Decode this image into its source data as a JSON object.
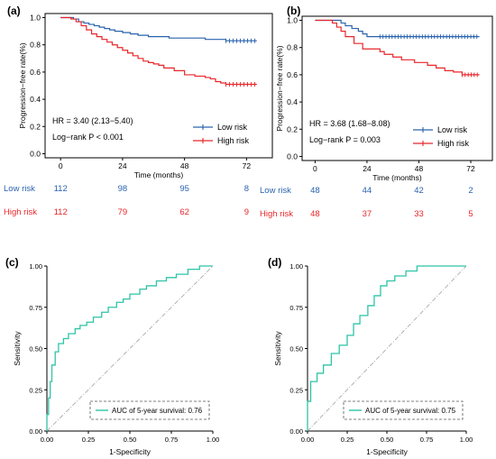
{
  "colors": {
    "low": "#2a63ae",
    "high": "#e8262a",
    "roc": "#2ec4a6",
    "diag": "#aaaaaa",
    "axis": "#000000"
  },
  "chart_data": [
    {
      "type": "line",
      "panel": "(a)",
      "ylabel": "Progression−free rate(%)",
      "xlabel": "Time (months)",
      "xlim": [
        -6,
        82
      ],
      "ylim": [
        -0.03,
        1.03
      ],
      "xticks": [
        "0",
        "24",
        "48",
        "72"
      ],
      "xtick_values": [
        0,
        24,
        48,
        72
      ],
      "yticks": [
        "0.0",
        "0.2",
        "0.4",
        "0.6",
        "0.8",
        "1.0"
      ],
      "ytick_values": [
        0,
        0.2,
        0.4,
        0.6,
        0.8,
        1.0
      ],
      "hr_text": "HR = 3.40 (2.13−5.40)",
      "p_text": "Log−rank P < 0.001",
      "legend_position": "bottom-right",
      "series": [
        {
          "name": "Low risk",
          "color_key": "low",
          "tail_censored": true,
          "x": [
            0,
            5,
            7,
            9,
            11,
            13,
            15,
            17,
            19,
            21,
            24,
            27,
            30,
            34,
            38,
            42,
            48,
            52,
            56,
            60,
            64,
            76
          ],
          "y": [
            1.0,
            0.99,
            0.97,
            0.96,
            0.95,
            0.94,
            0.93,
            0.92,
            0.91,
            0.9,
            0.89,
            0.88,
            0.87,
            0.86,
            0.86,
            0.85,
            0.85,
            0.85,
            0.84,
            0.84,
            0.83,
            0.83
          ]
        },
        {
          "name": "High risk",
          "color_key": "high",
          "tail_censored": true,
          "x": [
            0,
            4,
            6,
            8,
            10,
            12,
            14,
            16,
            18,
            20,
            22,
            24,
            26,
            28,
            30,
            32,
            34,
            36,
            38,
            40,
            44,
            48,
            52,
            56,
            58,
            60,
            62,
            64,
            76
          ],
          "y": [
            1.0,
            0.99,
            0.97,
            0.94,
            0.91,
            0.88,
            0.86,
            0.84,
            0.82,
            0.8,
            0.78,
            0.76,
            0.74,
            0.72,
            0.7,
            0.68,
            0.67,
            0.66,
            0.65,
            0.63,
            0.61,
            0.58,
            0.57,
            0.56,
            0.55,
            0.53,
            0.52,
            0.51,
            0.51
          ]
        }
      ],
      "risk_table": [
        {
          "label": "Low risk",
          "color_key": "low",
          "counts": [
            "112",
            "98",
            "95",
            "8"
          ]
        },
        {
          "label": "High risk",
          "color_key": "high",
          "counts": [
            "112",
            "79",
            "62",
            "9"
          ]
        }
      ]
    },
    {
      "type": "line",
      "panel": "(b)",
      "ylabel": "Progression−free rate(%)",
      "xlabel": "Time (months)",
      "xlim": [
        -6,
        82
      ],
      "ylim": [
        -0.03,
        1.03
      ],
      "xticks": [
        "0",
        "24",
        "48",
        "72"
      ],
      "xtick_values": [
        0,
        24,
        48,
        72
      ],
      "yticks": [
        "0.0",
        "0.2",
        "0.4",
        "0.6",
        "0.8",
        "1.0"
      ],
      "ytick_values": [
        0,
        0.2,
        0.4,
        0.6,
        0.8,
        1.0
      ],
      "hr_text": "HR = 3.68 (1.68−8.08)",
      "p_text": "Log−rank P = 0.003",
      "legend_position": "bottom-right",
      "series": [
        {
          "name": "Low risk",
          "color_key": "low",
          "tail_censored": true,
          "x": [
            0,
            12,
            14,
            17,
            20,
            22,
            24,
            30,
            76
          ],
          "y": [
            1.0,
            0.98,
            0.96,
            0.94,
            0.92,
            0.9,
            0.88,
            0.88,
            0.88
          ]
        },
        {
          "name": "High risk",
          "color_key": "high",
          "tail_censored": true,
          "x": [
            0,
            8,
            10,
            12,
            14,
            18,
            22,
            30,
            32,
            36,
            40,
            46,
            52,
            56,
            60,
            64,
            68,
            76
          ],
          "y": [
            1.0,
            0.98,
            0.95,
            0.92,
            0.88,
            0.83,
            0.79,
            0.77,
            0.75,
            0.73,
            0.71,
            0.69,
            0.67,
            0.65,
            0.63,
            0.62,
            0.6,
            0.6
          ]
        }
      ],
      "risk_table": [
        {
          "label": "Low risk",
          "color_key": "low",
          "counts": [
            "48",
            "44",
            "42",
            "2"
          ]
        },
        {
          "label": "High risk",
          "color_key": "high",
          "counts": [
            "48",
            "37",
            "33",
            "5"
          ]
        }
      ]
    },
    {
      "type": "line",
      "panel": "(c)",
      "ylabel": "Sensitivity",
      "xlabel": "1-Specificity",
      "xlim": [
        0,
        1
      ],
      "ylim": [
        0,
        1
      ],
      "xticks": [
        "0.00",
        "0.25",
        "0.50",
        "0.75",
        "1.00"
      ],
      "xtick_values": [
        0,
        0.25,
        0.5,
        0.75,
        1
      ],
      "yticks": [
        "0.00",
        "0.25",
        "0.50",
        "0.75",
        "1.00"
      ],
      "ytick_values": [
        0,
        0.25,
        0.5,
        0.75,
        1
      ],
      "legend": "AUC of 5-year survival: 0.76",
      "legend_position": "bottom-right",
      "diagonal": true,
      "series": [
        {
          "name": "AUC of 5-year survival: 0.76",
          "color_key": "roc",
          "x": [
            0,
            0,
            0.01,
            0.01,
            0.02,
            0.02,
            0.03,
            0.03,
            0.05,
            0.05,
            0.07,
            0.07,
            0.1,
            0.1,
            0.13,
            0.13,
            0.17,
            0.17,
            0.2,
            0.2,
            0.24,
            0.24,
            0.28,
            0.28,
            0.33,
            0.33,
            0.37,
            0.37,
            0.42,
            0.42,
            0.46,
            0.46,
            0.5,
            0.5,
            0.56,
            0.56,
            0.6,
            0.6,
            0.66,
            0.66,
            0.72,
            0.72,
            0.78,
            0.78,
            0.85,
            0.85,
            0.92,
            0.92,
            1.0
          ],
          "y": [
            0,
            0.1,
            0.1,
            0.2,
            0.2,
            0.3,
            0.3,
            0.4,
            0.4,
            0.48,
            0.48,
            0.53,
            0.53,
            0.56,
            0.56,
            0.59,
            0.59,
            0.62,
            0.62,
            0.64,
            0.64,
            0.66,
            0.66,
            0.69,
            0.69,
            0.72,
            0.72,
            0.75,
            0.75,
            0.78,
            0.78,
            0.8,
            0.8,
            0.83,
            0.83,
            0.86,
            0.86,
            0.88,
            0.88,
            0.91,
            0.91,
            0.93,
            0.93,
            0.95,
            0.95,
            0.98,
            0.98,
            1.0,
            1.0
          ]
        }
      ]
    },
    {
      "type": "line",
      "panel": "(d)",
      "ylabel": "Sensitivity",
      "xlabel": "1-Specificity",
      "xlim": [
        0,
        1
      ],
      "ylim": [
        0,
        1
      ],
      "xticks": [
        "0.00",
        "0.25",
        "0.50",
        "0.75",
        "1.00"
      ],
      "xtick_values": [
        0,
        0.25,
        0.5,
        0.75,
        1
      ],
      "yticks": [
        "0.00",
        "0.25",
        "0.50",
        "0.75",
        "1.00"
      ],
      "ytick_values": [
        0,
        0.25,
        0.5,
        0.75,
        1
      ],
      "legend": "AUC of 5-year survival: 0.75",
      "legend_position": "bottom-right",
      "diagonal": true,
      "series": [
        {
          "name": "AUC of 5-year survival: 0.75",
          "color_key": "roc",
          "x": [
            0,
            0,
            0.02,
            0.02,
            0.06,
            0.06,
            0.1,
            0.1,
            0.15,
            0.15,
            0.2,
            0.2,
            0.25,
            0.25,
            0.29,
            0.29,
            0.33,
            0.33,
            0.38,
            0.38,
            0.42,
            0.42,
            0.46,
            0.46,
            0.5,
            0.5,
            0.55,
            0.55,
            0.62,
            0.62,
            0.69,
            0.69,
            1.0
          ],
          "y": [
            0,
            0.18,
            0.18,
            0.3,
            0.3,
            0.35,
            0.35,
            0.4,
            0.4,
            0.47,
            0.47,
            0.52,
            0.52,
            0.58,
            0.58,
            0.65,
            0.65,
            0.7,
            0.7,
            0.76,
            0.76,
            0.82,
            0.82,
            0.88,
            0.88,
            0.91,
            0.91,
            0.94,
            0.94,
            0.97,
            0.97,
            1.0,
            1.0
          ]
        }
      ]
    }
  ]
}
